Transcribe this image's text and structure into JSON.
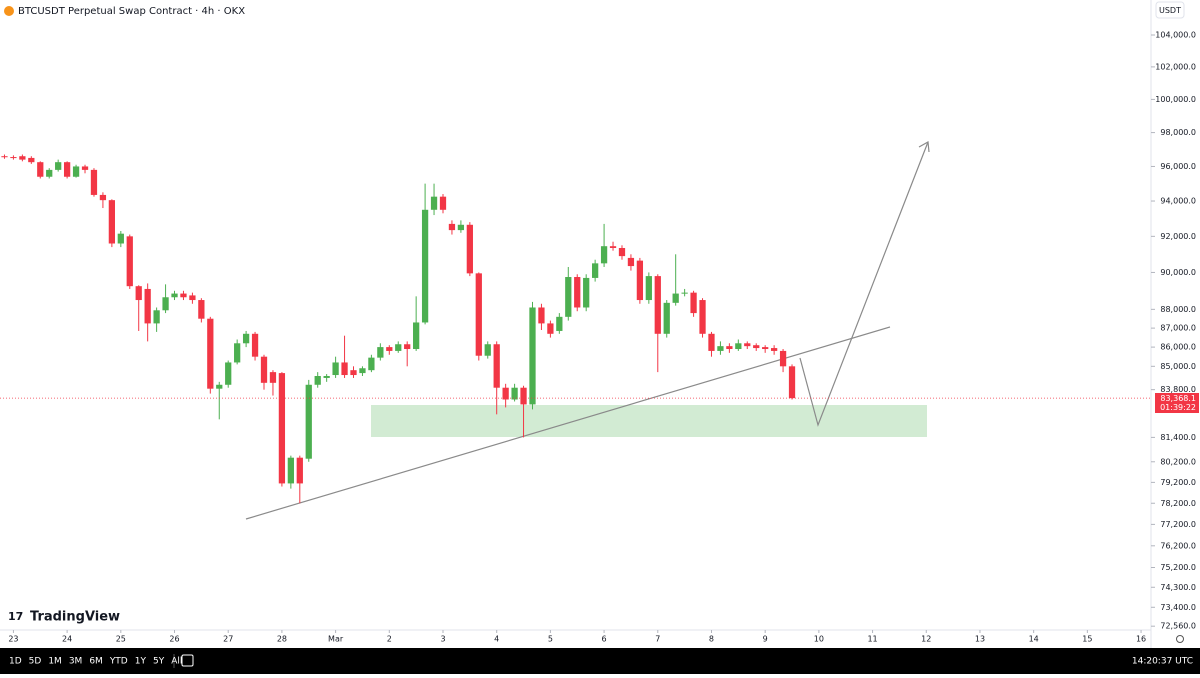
{
  "chart_data": {
    "type": "candlestick",
    "title": "BTCUSDT Perpetual Swap Contract · 4h · OKX",
    "currency_button": "USDT",
    "brand": "TradingView",
    "up_color": "#4CAF50",
    "down_color": "#F23645",
    "log_scale": true,
    "grid": false,
    "ylim": [
      72480,
      106240
    ],
    "yticks": [
      {
        "value": 104000,
        "label": "104,000.0"
      },
      {
        "value": 102000,
        "label": "102,000.0"
      },
      {
        "value": 100000,
        "label": "100,000.0"
      },
      {
        "value": 98000,
        "label": "98,000.0"
      },
      {
        "value": 96000,
        "label": "96,000.0"
      },
      {
        "value": 94000,
        "label": "94,000.0"
      },
      {
        "value": 92000,
        "label": "92,000.0"
      },
      {
        "value": 90000,
        "label": "90,000.0"
      },
      {
        "value": 88000,
        "label": "88,000.0"
      },
      {
        "value": 87000,
        "label": "87,000.0"
      },
      {
        "value": 86000,
        "label": "86,000.0"
      },
      {
        "value": 85000,
        "label": "85,000.0"
      },
      {
        "value": 83800,
        "label": "83,800.0"
      },
      {
        "value": 81400,
        "label": "81,400.0"
      },
      {
        "value": 80200,
        "label": "80,200.0"
      },
      {
        "value": 79200,
        "label": "79,200.0"
      },
      {
        "value": 78200,
        "label": "78,200.0"
      },
      {
        "value": 77200,
        "label": "77,200.0"
      },
      {
        "value": 76200,
        "label": "76,200.0"
      },
      {
        "value": 75200,
        "label": "75,200.0"
      },
      {
        "value": 74300,
        "label": "74,300.0"
      },
      {
        "value": 73400,
        "label": "73,400.0"
      },
      {
        "value": 72560,
        "label": "72,560.0"
      }
    ],
    "xlim": [
      -0.5,
      128
    ],
    "xticks": [
      {
        "value": 1,
        "label": "23"
      },
      {
        "value": 7,
        "label": "24"
      },
      {
        "value": 13,
        "label": "25"
      },
      {
        "value": 19,
        "label": "26"
      },
      {
        "value": 25,
        "label": "27"
      },
      {
        "value": 31,
        "label": "28"
      },
      {
        "value": 37,
        "label": "Mar"
      },
      {
        "value": 43,
        "label": "2"
      },
      {
        "value": 49,
        "label": "3"
      },
      {
        "value": 55,
        "label": "4"
      },
      {
        "value": 61,
        "label": "5"
      },
      {
        "value": 67,
        "label": "6"
      },
      {
        "value": 73,
        "label": "7"
      },
      {
        "value": 79,
        "label": "8"
      },
      {
        "value": 85,
        "label": "9"
      },
      {
        "value": 91,
        "label": "10"
      },
      {
        "value": 97,
        "label": "11"
      },
      {
        "value": 103,
        "label": "12"
      },
      {
        "value": 109,
        "label": "13"
      },
      {
        "value": 115,
        "label": "14"
      },
      {
        "value": 121,
        "label": "15"
      },
      {
        "value": 127,
        "label": "16"
      }
    ],
    "candles": {
      "open": [
        96600,
        96550,
        96600,
        96500,
        96250,
        95400,
        95800,
        96250,
        95400,
        96000,
        95800,
        94350,
        94050,
        91600,
        92000,
        89250,
        89100,
        87250,
        87950,
        88650,
        88850,
        88750,
        88500,
        87500,
        83850,
        84050,
        85200,
        86200,
        86700,
        85500,
        84700,
        84650,
        79150,
        80400,
        80350,
        84050,
        84400,
        84550,
        85200,
        84800,
        84650,
        84800,
        85450,
        86000,
        85800,
        86150,
        85900,
        87300,
        93500,
        94250,
        92700,
        92350,
        92650,
        89950,
        85550,
        86150,
        83900,
        83300,
        83900,
        83050,
        88100,
        87250,
        86850,
        87600,
        89750,
        88100,
        89700,
        90500,
        91450,
        91350,
        90800,
        90650,
        88500,
        89800,
        86700,
        88350,
        88850,
        88900,
        88500,
        86700,
        85800,
        86050,
        85900,
        86200,
        86100,
        86000,
        85950,
        85800,
        85000
      ],
      "high": [
        96700,
        96650,
        96700,
        96600,
        96300,
        95900,
        96400,
        96300,
        96100,
        96100,
        95900,
        94500,
        94100,
        92300,
        92100,
        89300,
        89400,
        88100,
        89350,
        89000,
        89000,
        88900,
        88600,
        87600,
        84200,
        85300,
        86400,
        86850,
        86800,
        85600,
        84800,
        84700,
        80500,
        80500,
        84300,
        84700,
        84600,
        85500,
        86600,
        85000,
        85000,
        85600,
        86200,
        86100,
        86300,
        86300,
        88700,
        95000,
        95000,
        94400,
        92900,
        92900,
        92800,
        90000,
        86300,
        86300,
        84100,
        84100,
        84000,
        88400,
        88300,
        87400,
        87800,
        90300,
        89900,
        89900,
        90700,
        92700,
        91700,
        91500,
        91000,
        90800,
        90000,
        89900,
        88500,
        91000,
        89100,
        89000,
        88600,
        86800,
        86300,
        86200,
        86400,
        86300,
        86200,
        86100,
        86100,
        85900,
        85100
      ],
      "low": [
        96450,
        96400,
        96300,
        96150,
        95300,
        95300,
        95700,
        95300,
        95350,
        95600,
        94250,
        93600,
        91400,
        91400,
        89100,
        86850,
        86300,
        86800,
        87800,
        88500,
        88500,
        88300,
        87300,
        83600,
        82300,
        83900,
        85100,
        86000,
        85300,
        83800,
        83500,
        79000,
        78900,
        78200,
        80200,
        83900,
        84200,
        84400,
        84400,
        84400,
        84500,
        84700,
        85300,
        85600,
        85700,
        85000,
        85800,
        87200,
        93200,
        93300,
        92100,
        92200,
        89800,
        85300,
        85400,
        82550,
        82900,
        83200,
        81400,
        82800,
        86900,
        86500,
        86700,
        87400,
        87900,
        87900,
        89500,
        90300,
        91200,
        90700,
        90100,
        88300,
        88300,
        84700,
        86500,
        88200,
        88700,
        87600,
        86500,
        85500,
        85600,
        85700,
        85800,
        85900,
        85800,
        85700,
        85600,
        84700,
        83300
      ],
      "close": [
        96550,
        96500,
        96400,
        96250,
        95400,
        95800,
        96250,
        95400,
        96000,
        95800,
        94350,
        94050,
        91600,
        92150,
        89250,
        88500,
        87250,
        87950,
        88650,
        88850,
        88650,
        88500,
        87500,
        83850,
        84050,
        85200,
        86200,
        86700,
        85500,
        84150,
        84150,
        79150,
        80400,
        79150,
        84050,
        84500,
        84500,
        85200,
        84550,
        84550,
        84900,
        85450,
        86000,
        85800,
        86150,
        85900,
        87300,
        93500,
        94250,
        93500,
        92350,
        92650,
        89950,
        85550,
        86150,
        83900,
        83300,
        83900,
        83050,
        88100,
        87250,
        86700,
        87600,
        89750,
        88100,
        89700,
        90500,
        91450,
        91350,
        90900,
        90350,
        88500,
        89800,
        86700,
        88350,
        88850,
        88900,
        87800,
        86700,
        85800,
        86050,
        85900,
        86200,
        86050,
        85950,
        85900,
        85800,
        85000,
        83368.1
      ]
    },
    "last_price_label": "83,368.1",
    "countdown": "01:39:22",
    "toolbar": {
      "ranges": [
        "1D",
        "5D",
        "1M",
        "3M",
        "6M",
        "YTD",
        "1Y",
        "5Y",
        "All"
      ],
      "clock": "14:20:37 UTC"
    }
  }
}
